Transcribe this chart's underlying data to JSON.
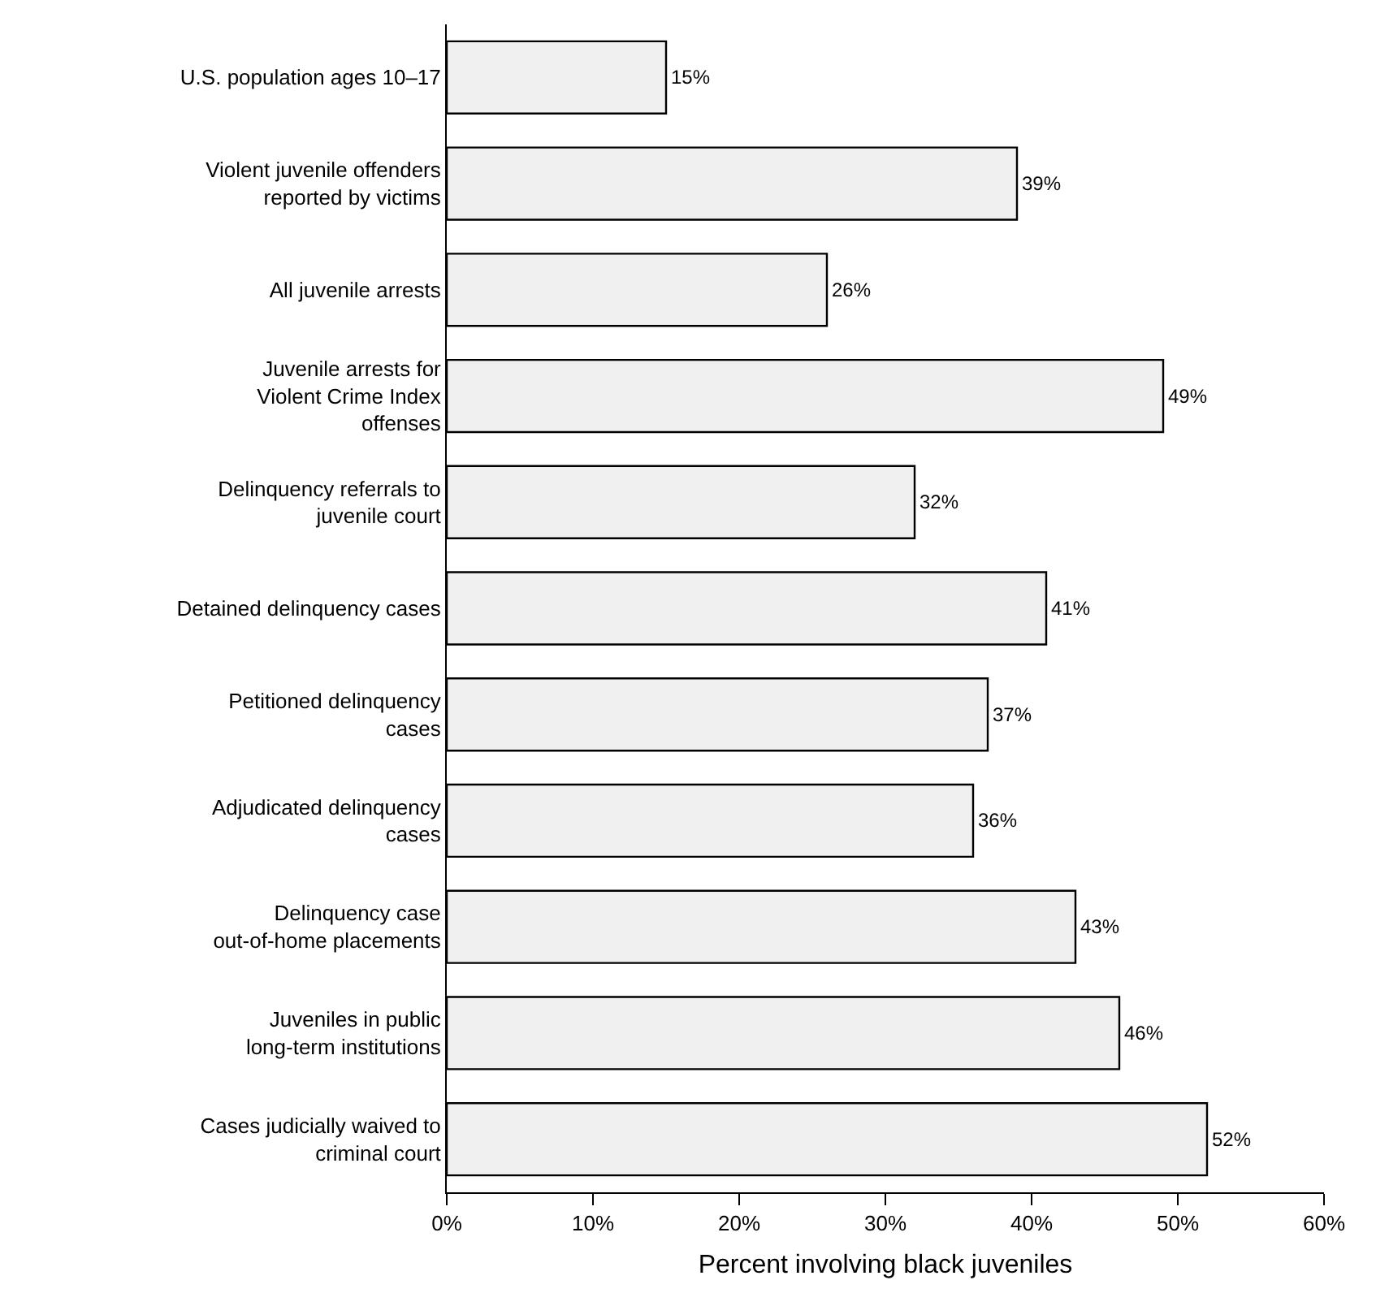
{
  "chart_data": {
    "type": "bar",
    "orientation": "horizontal",
    "xlabel": "Percent involving black juveniles",
    "categories": [
      "U.S. population ages 10–17",
      "Violent juvenile offenders reported by victims",
      "All juvenile arrests",
      "Juvenile arrests for Violent Crime Index offenses",
      "Delinquency referrals to juvenile court",
      "Detained delinquency cases",
      "Petitioned delinquency cases",
      "Adjudicated delinquency cases",
      "Delinquency case out-of-home placements",
      "Juveniles in public long-term institutions",
      "Cases judicially waived to criminal court"
    ],
    "values": [
      15,
      39,
      26,
      49,
      32,
      41,
      37,
      36,
      43,
      46,
      52
    ],
    "value_labels": [
      "15%",
      "39%",
      "26%",
      "49%",
      "32%",
      "41%",
      "37%",
      "36%",
      "43%",
      "46%",
      "52%"
    ],
    "color": "#f0f0f0",
    "xlim": [
      0,
      60
    ],
    "xticks": [
      {
        "value": 0,
        "label": "0%"
      },
      {
        "value": 10,
        "label": "10%"
      },
      {
        "value": 20,
        "label": "20%"
      },
      {
        "value": 30,
        "label": "30%"
      },
      {
        "value": 40,
        "label": "40%"
      },
      {
        "value": 50,
        "label": "50%"
      },
      {
        "value": 60,
        "label": "60%"
      }
    ],
    "grid": false,
    "legend": false
  }
}
